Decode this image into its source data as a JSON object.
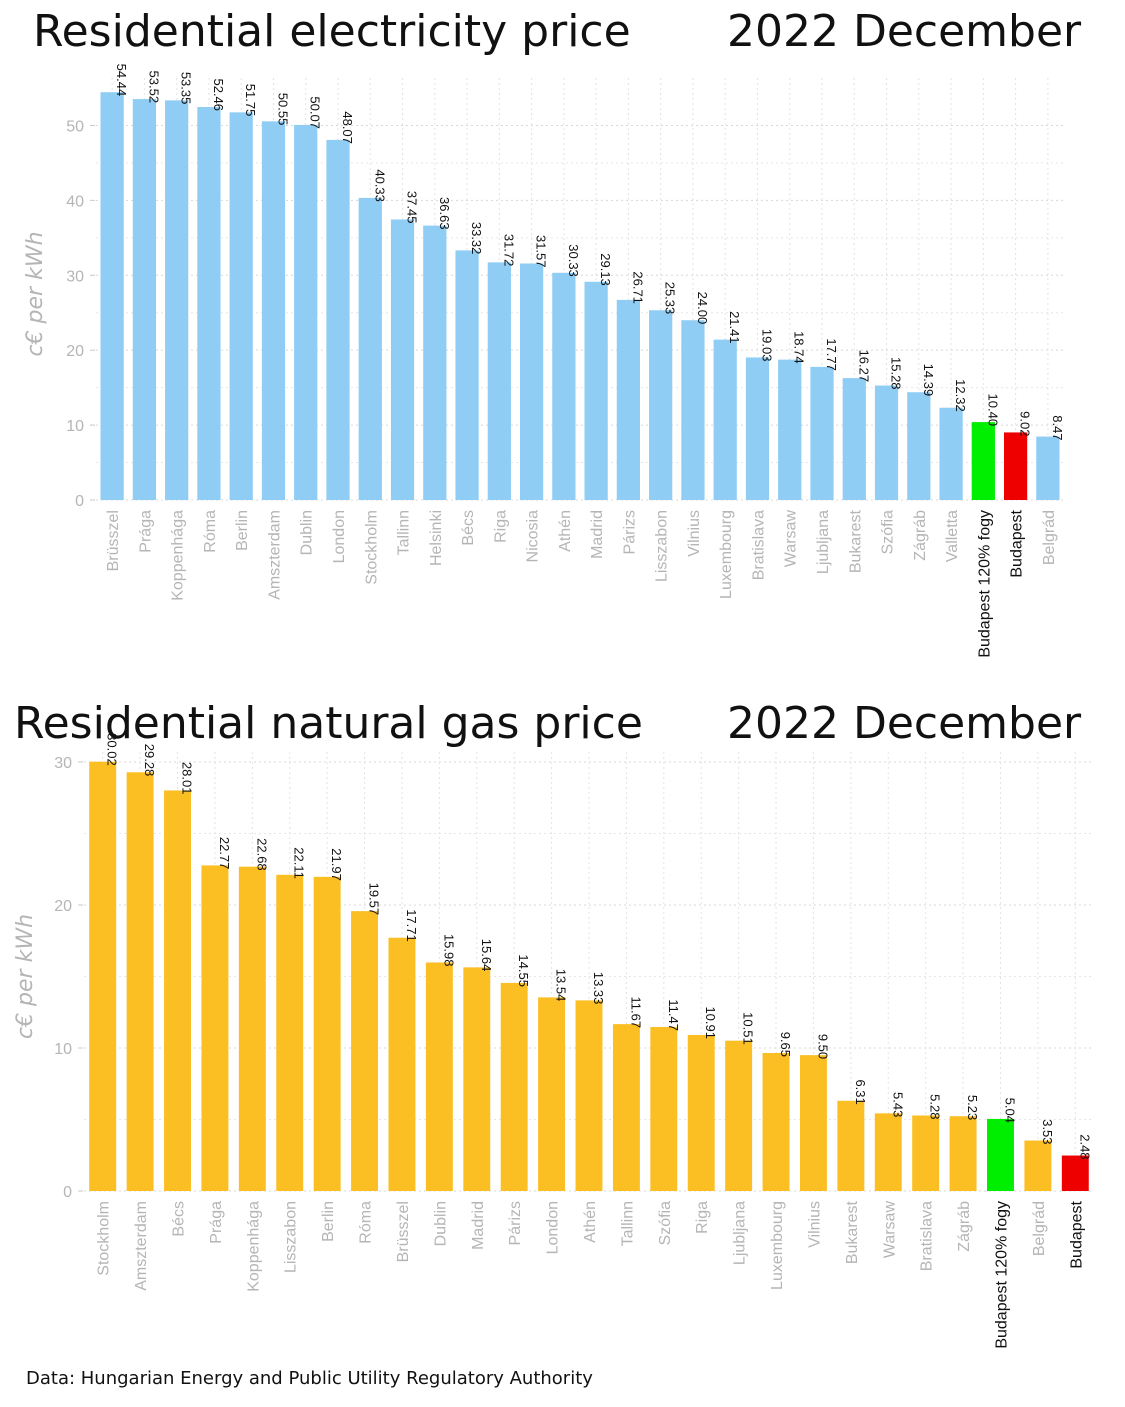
{
  "elec_title": "Residential electricity price",
  "elec_date": "2022 December",
  "gas_title": "Residential natural gas price",
  "gas_date": "2022 December",
  "source": "Data: Hungarian Energy and Public Utility Regulatory Authority",
  "colors": {
    "electricity_bar": "#8fcdf5",
    "gas_bar": "#fbbf24",
    "highlight_green": "#00ee00",
    "highlight_red": "#ee0000",
    "axis_text": "#b5b5b5",
    "highlight_text": "#111111"
  },
  "chart_data": [
    {
      "type": "bar",
      "title": "Residential electricity price",
      "subtitle": "2022 December",
      "ylabel": "c€ per kWh",
      "xlabel": "",
      "ylim": [
        0,
        55
      ],
      "yticks": [
        0,
        10,
        20,
        30,
        40,
        50
      ],
      "grid": true,
      "categories": [
        "Brüsszel",
        "Prága",
        "Koppenhága",
        "Róma",
        "Berlin",
        "Amszterdam",
        "Dublin",
        "London",
        "Stockholm",
        "Tallinn",
        "Helsinki",
        "Bécs",
        "Riga",
        "Nicosia",
        "Athén",
        "Madrid",
        "Párizs",
        "Lisszabon",
        "Vilnius",
        "Luxembourg",
        "Bratislava",
        "Warsaw",
        "Ljubljana",
        "Bukarest",
        "Szófia",
        "Zágráb",
        "Valletta",
        "Budapest 120% fogy",
        "Budapest",
        "Belgrád"
      ],
      "values": [
        54.44,
        53.52,
        53.35,
        52.46,
        51.75,
        50.55,
        50.07,
        48.07,
        40.33,
        37.45,
        36.63,
        33.32,
        31.72,
        31.57,
        30.33,
        29.13,
        26.71,
        25.33,
        24.0,
        21.41,
        19.03,
        18.74,
        17.77,
        16.27,
        15.28,
        14.39,
        12.32,
        10.4,
        9.02,
        8.47
      ],
      "value_labels": [
        "54.44",
        "53.52",
        "53.35",
        "52.46",
        "51.75",
        "50.55",
        "50.07",
        "48.07",
        "40.33",
        "37.45",
        "36.63",
        "33.32",
        "31.72",
        "31.57",
        "30.33",
        "29.13",
        "26.71",
        "25.33",
        "24.00",
        "21.41",
        "19.03",
        "18.74",
        "17.77",
        "16.27",
        "15.28",
        "14.39",
        "12.32",
        "10.40",
        "9.02",
        "8.47"
      ],
      "highlights": {
        "Budapest 120% fogy": "green",
        "Budapest": "red"
      }
    },
    {
      "type": "bar",
      "title": "Residential natural gas price",
      "subtitle": "2022 December",
      "ylabel": "c€ per kWh",
      "xlabel": "",
      "ylim": [
        0,
        30
      ],
      "yticks": [
        0,
        10,
        20,
        30
      ],
      "grid": true,
      "categories": [
        "Stockholm",
        "Amszterdam",
        "Bécs",
        "Prága",
        "Koppenhága",
        "Lisszabon",
        "Berlin",
        "Róma",
        "Brüsszel",
        "Dublin",
        "Madrid",
        "Párizs",
        "London",
        "Athén",
        "Tallinn",
        "Szófia",
        "Riga",
        "Ljubljana",
        "Luxembourg",
        "Vilnius",
        "Bukarest",
        "Warsaw",
        "Bratislava",
        "Zágráb",
        "Budapest 120% fogy",
        "Belgrád",
        "Budapest"
      ],
      "values": [
        30.02,
        29.28,
        28.01,
        22.77,
        22.68,
        22.11,
        21.97,
        19.57,
        17.71,
        15.98,
        15.64,
        14.55,
        13.54,
        13.33,
        11.67,
        11.47,
        10.91,
        10.51,
        9.65,
        9.5,
        6.31,
        5.43,
        5.28,
        5.23,
        5.04,
        3.53,
        2.48
      ],
      "value_labels": [
        "30.02",
        "29.28",
        "28.01",
        "22.77",
        "22.68",
        "22.11",
        "21.97",
        "19.57",
        "17.71",
        "15.98",
        "15.64",
        "14.55",
        "13.54",
        "13.33",
        "11.67",
        "11.47",
        "10.91",
        "10.51",
        "9.65",
        "9.50",
        "6.31",
        "5.43",
        "5.28",
        "5.23",
        "5.04",
        "3.53",
        "2.48"
      ],
      "highlights": {
        "Budapest 120% fogy": "green",
        "Budapest": "red"
      }
    }
  ]
}
